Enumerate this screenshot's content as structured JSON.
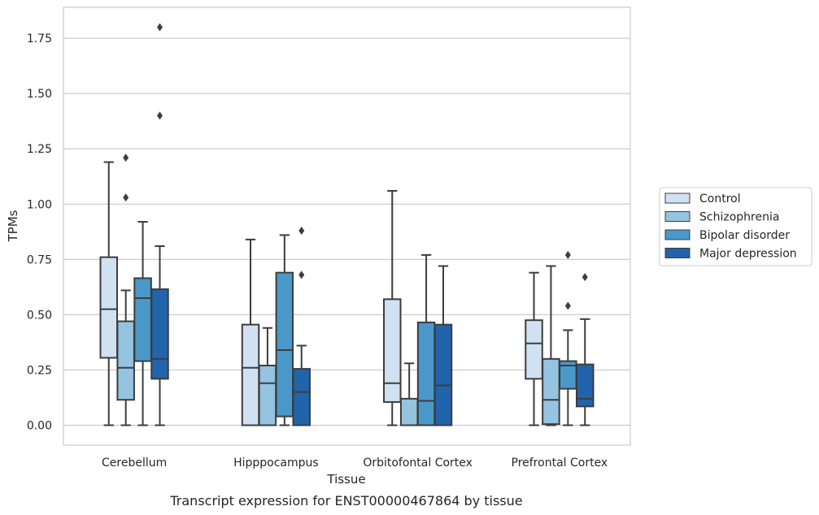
{
  "chart_data": {
    "type": "box",
    "title": "",
    "caption": "Transcript expression for ENST00000467864 by tissue",
    "xlabel": "Tissue",
    "ylabel": "TPMs",
    "ylim": [
      -0.09,
      1.89
    ],
    "yticks": [
      "0.00",
      "0.25",
      "0.50",
      "0.75",
      "1.00",
      "1.25",
      "1.50",
      "1.75"
    ],
    "ytick_values": [
      0,
      0.25,
      0.5,
      0.75,
      1.0,
      1.25,
      1.5,
      1.75
    ],
    "grid": "horizontal",
    "legend_position": "right",
    "categories": [
      "Cerebellum",
      "Hipppocampus",
      "Orbitofontal Cortex",
      "Prefrontal Cortex"
    ],
    "series": [
      {
        "name": "Control",
        "color": "#d0e1f2",
        "boxes": [
          {
            "whisker_low": 0.0,
            "q1": 0.305,
            "median": 0.525,
            "q3": 0.76,
            "whisker_high": 1.19,
            "outliers": []
          },
          {
            "whisker_low": 0.0,
            "q1": 0.0,
            "median": 0.26,
            "q3": 0.455,
            "whisker_high": 0.84,
            "outliers": []
          },
          {
            "whisker_low": 0.0,
            "q1": 0.105,
            "median": 0.19,
            "q3": 0.57,
            "whisker_high": 1.06,
            "outliers": []
          },
          {
            "whisker_low": 0.0,
            "q1": 0.21,
            "median": 0.37,
            "q3": 0.475,
            "whisker_high": 0.69,
            "outliers": []
          }
        ]
      },
      {
        "name": "Schizophrenia",
        "color": "#94c4df",
        "boxes": [
          {
            "whisker_low": 0.0,
            "q1": 0.115,
            "median": 0.26,
            "q3": 0.47,
            "whisker_high": 0.61,
            "outliers": [
              1.03,
              1.21
            ]
          },
          {
            "whisker_low": 0.0,
            "q1": 0.0,
            "median": 0.19,
            "q3": 0.27,
            "whisker_high": 0.44,
            "outliers": []
          },
          {
            "whisker_low": 0.0,
            "q1": 0.0,
            "median": 0.0,
            "q3": 0.12,
            "whisker_high": 0.28,
            "outliers": []
          },
          {
            "whisker_low": 0.0,
            "q1": 0.005,
            "median": 0.115,
            "q3": 0.3,
            "whisker_high": 0.72,
            "outliers": []
          }
        ]
      },
      {
        "name": "Bipolar disorder",
        "color": "#4a98c9",
        "boxes": [
          {
            "whisker_low": 0.0,
            "q1": 0.29,
            "median": 0.575,
            "q3": 0.665,
            "whisker_high": 0.92,
            "outliers": []
          },
          {
            "whisker_low": 0.0,
            "q1": 0.04,
            "median": 0.34,
            "q3": 0.69,
            "whisker_high": 0.86,
            "outliers": []
          },
          {
            "whisker_low": 0.0,
            "q1": 0.0,
            "median": 0.11,
            "q3": 0.465,
            "whisker_high": 0.77,
            "outliers": []
          },
          {
            "whisker_low": 0.0,
            "q1": 0.165,
            "median": 0.27,
            "q3": 0.29,
            "whisker_high": 0.43,
            "outliers": [
              0.54,
              0.77
            ]
          }
        ]
      },
      {
        "name": "Major depression",
        "color": "#2164ab",
        "boxes": [
          {
            "whisker_low": 0.0,
            "q1": 0.21,
            "median": 0.3,
            "q3": 0.615,
            "whisker_high": 0.81,
            "outliers": [
              1.4,
              1.8
            ]
          },
          {
            "whisker_low": 0.0,
            "q1": 0.0,
            "median": 0.15,
            "q3": 0.255,
            "whisker_high": 0.36,
            "outliers": [
              0.68,
              0.88
            ]
          },
          {
            "whisker_low": 0.0,
            "q1": 0.0,
            "median": 0.18,
            "q3": 0.455,
            "whisker_high": 0.72,
            "outliers": []
          },
          {
            "whisker_low": 0.0,
            "q1": 0.085,
            "median": 0.12,
            "q3": 0.275,
            "whisker_high": 0.48,
            "outliers": [
              0.67
            ]
          }
        ]
      }
    ]
  }
}
